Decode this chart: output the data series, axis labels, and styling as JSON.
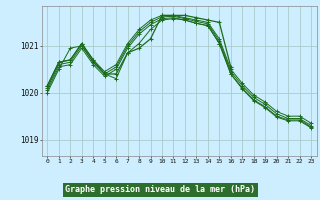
{
  "background_color": "#cceeff",
  "plot_bg": "#cceeff",
  "grid_color": "#aacccc",
  "line_color": "#1a6b1a",
  "xlabel": "Graphe pression niveau de la mer (hPa)",
  "xlabel_bg": "#2d6e2d",
  "xlabel_fg": "white",
  "ylabel_ticks": [
    1019,
    1020,
    1021
  ],
  "xlim": [
    -0.5,
    23.5
  ],
  "ylim": [
    1018.65,
    1021.85
  ],
  "xticks": [
    0,
    1,
    2,
    3,
    4,
    5,
    6,
    7,
    8,
    9,
    10,
    11,
    12,
    13,
    14,
    15,
    16,
    17,
    18,
    19,
    20,
    21,
    22,
    23
  ],
  "series": [
    {
      "x": [
        0,
        1,
        2,
        3,
        4,
        5,
        6,
        7,
        8,
        9,
        10,
        11,
        12,
        13,
        14,
        15,
        16,
        17,
        18,
        19,
        20,
        21,
        22,
        23
      ],
      "y": [
        1020.15,
        1020.65,
        1020.7,
        1021.05,
        1020.7,
        1020.45,
        1020.6,
        1021.05,
        1021.35,
        1021.55,
        1021.65,
        1021.65,
        1021.6,
        1021.55,
        1021.5,
        1021.15,
        1020.5,
        1020.2,
        1019.95,
        1019.8,
        1019.6,
        1019.5,
        1019.5,
        1019.35
      ]
    },
    {
      "x": [
        0,
        1,
        2,
        3,
        4,
        5,
        6,
        7,
        8,
        9,
        10,
        11,
        12,
        13,
        14,
        15,
        16,
        17,
        18,
        19,
        20,
        21,
        22,
        23
      ],
      "y": [
        1020.1,
        1020.6,
        1020.65,
        1021.0,
        1020.65,
        1020.4,
        1020.55,
        1021.0,
        1021.3,
        1021.5,
        1021.62,
        1021.63,
        1021.58,
        1021.52,
        1021.47,
        1021.1,
        1020.45,
        1020.15,
        1019.9,
        1019.75,
        1019.55,
        1019.45,
        1019.45,
        1019.3
      ]
    },
    {
      "x": [
        0,
        1,
        2,
        3,
        4,
        5,
        6,
        7,
        8,
        9,
        10,
        11,
        12,
        13,
        14,
        15,
        16,
        17,
        18,
        19,
        20,
        21,
        22,
        23
      ],
      "y": [
        1020.05,
        1020.55,
        1020.6,
        1020.95,
        1020.6,
        1020.35,
        1020.5,
        1020.95,
        1021.25,
        1021.45,
        1021.58,
        1021.6,
        1021.55,
        1021.48,
        1021.43,
        1021.05,
        1020.4,
        1020.1,
        1019.85,
        1019.7,
        1019.5,
        1019.42,
        1019.42,
        1019.27
      ]
    },
    {
      "x": [
        0,
        1,
        2,
        3,
        4,
        5,
        6,
        7,
        8,
        9,
        10,
        11,
        12,
        13,
        14,
        15,
        16,
        17,
        18,
        19,
        20,
        21,
        22,
        23
      ],
      "y": [
        1020.0,
        1020.5,
        1020.95,
        1021.0,
        1020.65,
        1020.4,
        1020.3,
        1020.85,
        1021.05,
        1021.35,
        1021.55,
        1021.58,
        1021.55,
        1021.48,
        1021.43,
        1021.05,
        1020.4,
        1020.08,
        1019.83,
        1019.68,
        1019.48,
        1019.4,
        1019.4,
        1019.25
      ]
    }
  ],
  "main_series": {
    "x": [
      0,
      1,
      2,
      3,
      4,
      5,
      6,
      7,
      8,
      9,
      10,
      11,
      12,
      13,
      14,
      15,
      16
    ],
    "y": [
      1020.15,
      1020.65,
      1020.7,
      1021.05,
      1020.7,
      1020.4,
      1020.4,
      1020.85,
      1020.95,
      1021.15,
      1021.65,
      1021.65,
      1021.65,
      1021.6,
      1021.55,
      1021.5,
      1020.55
    ]
  }
}
